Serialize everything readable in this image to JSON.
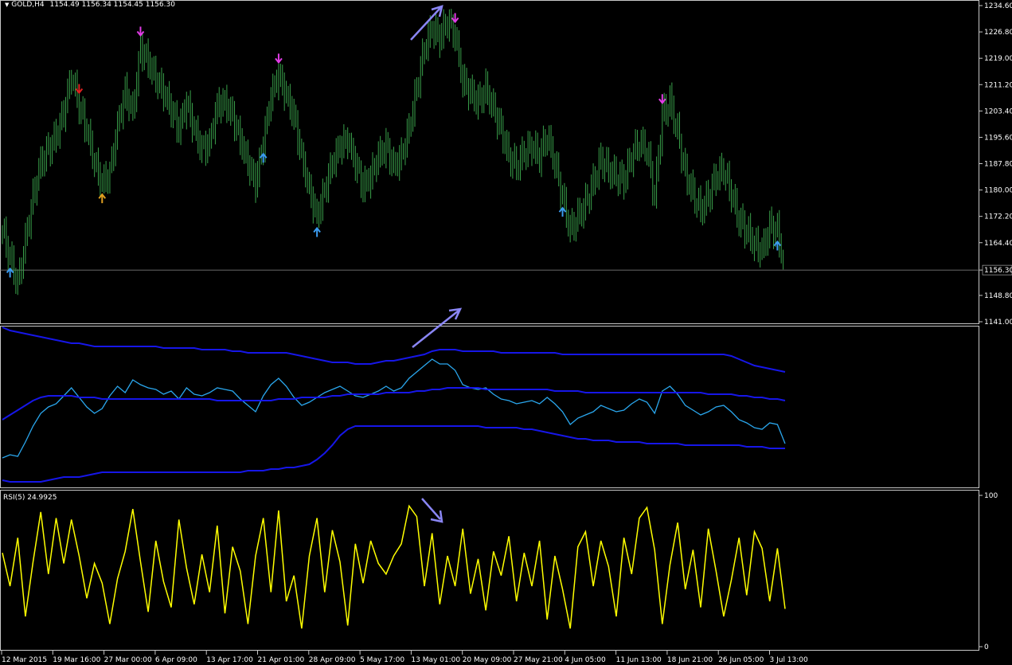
{
  "header": {
    "symbol": "GOLD,H4",
    "ohlc": "1154.49 1156.34 1154.45 1156.30"
  },
  "colors": {
    "background": "#000000",
    "candles": "#39a04a",
    "bands": "#1616e8",
    "price_line": "#2aa7ee",
    "rsi": "#ffff00",
    "arrow_up": "#3b9cf0",
    "arrow_down": "#e23ce6",
    "annotation": "#8a86f5"
  },
  "chart_data": [
    {
      "type": "bar",
      "panel": "main",
      "series": [
        {
          "name": "GOLD,H4",
          "values": [
            1168,
            1160,
            1152,
            1165,
            1178,
            1188,
            1192,
            1196,
            1203,
            1214,
            1205,
            1198,
            1188,
            1182,
            1185,
            1199,
            1209,
            1203,
            1222,
            1218,
            1213,
            1209,
            1204,
            1198,
            1206,
            1198,
            1192,
            1194,
            1205,
            1206,
            1202,
            1195,
            1188,
            1182,
            1194,
            1208,
            1214,
            1208,
            1202,
            1190,
            1180,
            1172,
            1180,
            1188,
            1193,
            1195,
            1188,
            1181,
            1184,
            1190,
            1193,
            1187,
            1190,
            1198,
            1210,
            1222,
            1228,
            1225,
            1230,
            1226,
            1212,
            1209,
            1206,
            1210,
            1204,
            1198,
            1190,
            1187,
            1191,
            1193,
            1190,
            1196,
            1188,
            1178,
            1168,
            1172,
            1176,
            1182,
            1189,
            1186,
            1184,
            1183,
            1190,
            1194,
            1192,
            1178,
            1202,
            1206,
            1197,
            1185,
            1179,
            1174,
            1178,
            1184,
            1186,
            1179,
            1171,
            1168,
            1164,
            1162,
            1169,
            1168,
            1156
          ]
        }
      ],
      "yticks": [
        "1234.60",
        "1226.80",
        "1219.00",
        "1211.20",
        "1203.40",
        "1195.60",
        "1187.80",
        "1180.00",
        "1172.20",
        "1164.40",
        "1156.30",
        "1148.80",
        "1141.00"
      ],
      "ylim": [
        1141.0,
        1234.6
      ],
      "current_price": 1156.3,
      "arrows_up_idx": [
        1,
        13,
        34,
        41,
        73,
        101
      ],
      "arrow_up_orange_idx": [
        13
      ],
      "arrows_down_idx": [
        10,
        18,
        36,
        59,
        86
      ],
      "arrow_down_red_idx": [
        10
      ]
    },
    {
      "type": "line",
      "panel": "bands",
      "series": [
        {
          "name": "price",
          "values": [
            18,
            20,
            19,
            28,
            38,
            46,
            50,
            52,
            57,
            62,
            56,
            50,
            46,
            49,
            57,
            63,
            59,
            67,
            64,
            62,
            61,
            58,
            60,
            55,
            62,
            58,
            57,
            59,
            62,
            61,
            60,
            55,
            51,
            47,
            57,
            64,
            68,
            63,
            56,
            51,
            53,
            56,
            59,
            61,
            63,
            60,
            57,
            56,
            58,
            60,
            63,
            60,
            62,
            68,
            72,
            76,
            80,
            77,
            77,
            73,
            64,
            62,
            61,
            62,
            58,
            55,
            54,
            52,
            53,
            54,
            52,
            56,
            52,
            47,
            39,
            43,
            45,
            47,
            51,
            49,
            47,
            48,
            52,
            55,
            53,
            46,
            60,
            63,
            58,
            51,
            48,
            45,
            47,
            50,
            51,
            47,
            42,
            40,
            37,
            36,
            40,
            39,
            27
          ]
        },
        {
          "name": "upper",
          "values": [
            100,
            98,
            97,
            96,
            95,
            94,
            93,
            92,
            91,
            90,
            90,
            89,
            88,
            88,
            88,
            88,
            88,
            88,
            88,
            88,
            88,
            87,
            87,
            87,
            87,
            87,
            86,
            86,
            86,
            86,
            85,
            85,
            84,
            84,
            84,
            84,
            84,
            84,
            83,
            82,
            81,
            80,
            79,
            78,
            78,
            78,
            77,
            77,
            77,
            78,
            79,
            79,
            80,
            81,
            82,
            83,
            85,
            86,
            86,
            86,
            85,
            85,
            85,
            85,
            85,
            84,
            84,
            84,
            84,
            84,
            84,
            84,
            84,
            83,
            83,
            83,
            83,
            83,
            83,
            83,
            83,
            83,
            83,
            83,
            83,
            83,
            83,
            83,
            83,
            83,
            83,
            83,
            83,
            83,
            83,
            82,
            80,
            78,
            76,
            75,
            74,
            73,
            72
          ]
        },
        {
          "name": "middle",
          "values": [
            42,
            45,
            48,
            51,
            54,
            56,
            57,
            57,
            57,
            57,
            56,
            56,
            56,
            55,
            55,
            55,
            55,
            55,
            55,
            55,
            55,
            55,
            55,
            55,
            55,
            55,
            55,
            55,
            54,
            54,
            54,
            54,
            54,
            54,
            54,
            54,
            55,
            55,
            55,
            56,
            56,
            56,
            56,
            57,
            57,
            58,
            58,
            58,
            58,
            58,
            59,
            59,
            59,
            59,
            60,
            60,
            61,
            61,
            62,
            62,
            62,
            62,
            62,
            61,
            61,
            61,
            61,
            61,
            61,
            61,
            61,
            61,
            60,
            60,
            60,
            60,
            59,
            59,
            59,
            59,
            59,
            59,
            59,
            59,
            59,
            59,
            59,
            59,
            59,
            59,
            59,
            59,
            58,
            58,
            58,
            58,
            57,
            57,
            56,
            56,
            55,
            55,
            54
          ]
        },
        {
          "name": "lower",
          "values": [
            4,
            3,
            3,
            3,
            3,
            3,
            4,
            5,
            6,
            6,
            6,
            7,
            8,
            9,
            9,
            9,
            9,
            9,
            9,
            9,
            9,
            9,
            9,
            9,
            9,
            9,
            9,
            9,
            9,
            9,
            9,
            9,
            10,
            10,
            10,
            11,
            11,
            12,
            12,
            13,
            14,
            17,
            21,
            26,
            32,
            36,
            38,
            38,
            38,
            38,
            38,
            38,
            38,
            38,
            38,
            38,
            38,
            38,
            38,
            38,
            38,
            38,
            38,
            37,
            37,
            37,
            37,
            37,
            36,
            36,
            35,
            34,
            33,
            32,
            31,
            30,
            30,
            29,
            29,
            29,
            28,
            28,
            28,
            28,
            27,
            27,
            27,
            27,
            27,
            26,
            26,
            26,
            26,
            26,
            26,
            26,
            26,
            25,
            25,
            25,
            24,
            24,
            24
          ]
        }
      ],
      "ylim": [
        0,
        100
      ]
    },
    {
      "type": "line",
      "panel": "rsi",
      "title": "RSI(5) 24.9925",
      "yticks": [
        "100",
        "0"
      ],
      "ylim": [
        0,
        100
      ],
      "series": [
        {
          "name": "RSI(5)",
          "values": [
            62,
            40,
            72,
            20,
            56,
            89,
            48,
            85,
            55,
            84,
            60,
            32,
            55,
            42,
            15,
            45,
            63,
            91,
            56,
            23,
            70,
            43,
            26,
            84,
            52,
            28,
            61,
            36,
            80,
            22,
            66,
            50,
            15,
            60,
            85,
            36,
            90,
            30,
            47,
            12,
            60,
            85,
            36,
            77,
            56,
            14,
            68,
            42,
            70,
            55,
            48,
            60,
            68,
            93,
            86,
            40,
            75,
            28,
            60,
            40,
            78,
            35,
            58,
            24,
            63,
            47,
            73,
            30,
            62,
            40,
            70,
            18,
            60,
            38,
            12,
            66,
            76,
            40,
            70,
            53,
            20,
            72,
            48,
            85,
            92,
            64,
            15,
            54,
            82,
            38,
            64,
            26,
            78,
            50,
            20,
            44,
            72,
            34,
            76,
            65,
            30,
            65,
            25
          ]
        }
      ]
    }
  ],
  "xaxis_labels": [
    "12 Mar 2015",
    "19 Mar 16:00",
    "27 Mar 00:00",
    "6 Apr 09:00",
    "13 Apr 17:00",
    "21 Apr 01:00",
    "28 Apr 09:00",
    "5 May 17:00",
    "13 May 01:00",
    "20 May 09:00",
    "27 May 21:00",
    "4 Jun 05:00",
    "11 Jun 13:00",
    "18 Jun 21:00",
    "26 Jun 05:00",
    "3 Jul 13:00"
  ]
}
